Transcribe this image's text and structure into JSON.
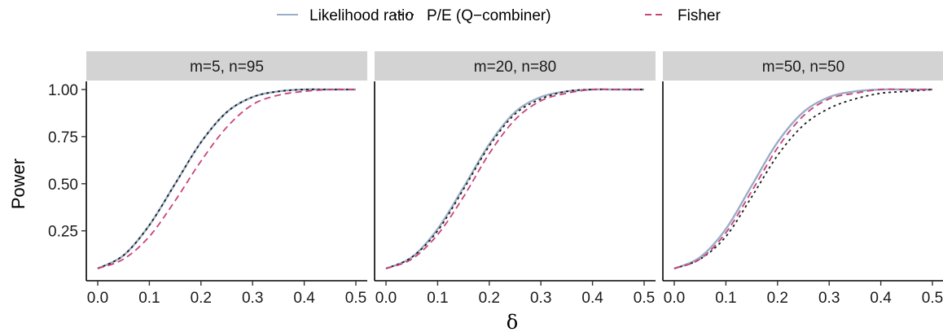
{
  "chart_data": {
    "type": "line",
    "xlabel": "δ",
    "ylabel": "Power",
    "xlim": [
      0,
      0.5
    ],
    "ylim": [
      0.05,
      1.0
    ],
    "x_ticks": [
      "0.0",
      "0.1",
      "0.2",
      "0.3",
      "0.4",
      "0.5"
    ],
    "y_ticks": [
      "0.25",
      "0.50",
      "0.75",
      "1.00"
    ],
    "y_tick_values": [
      0.25,
      0.5,
      0.75,
      1.0
    ],
    "grid": false,
    "legend_position": "top",
    "legend": [
      {
        "label": "Likelihood ratio",
        "color": "#9aaec6",
        "dash": "solid"
      },
      {
        "label": "P/E (Q−combiner)",
        "color": "#1a1a1a",
        "dash": "dotted"
      },
      {
        "label": "Fisher",
        "color": "#c8437a",
        "dash": "dashed"
      }
    ],
    "x": [
      0.0,
      0.05,
      0.1,
      0.15,
      0.2,
      0.25,
      0.3,
      0.35,
      0.4,
      0.45,
      0.5
    ],
    "panels": [
      {
        "title": "m=5, n=95",
        "series": [
          {
            "name": "Likelihood ratio",
            "values": [
              0.05,
              0.12,
              0.28,
              0.5,
              0.72,
              0.88,
              0.96,
              0.99,
              1.0,
              1.0,
              1.0
            ]
          },
          {
            "name": "P/E (Q−combiner)",
            "values": [
              0.05,
              0.12,
              0.28,
              0.5,
              0.72,
              0.88,
              0.96,
              0.99,
              1.0,
              1.0,
              1.0
            ]
          },
          {
            "name": "Fisher",
            "values": [
              0.05,
              0.1,
              0.22,
              0.41,
              0.62,
              0.8,
              0.92,
              0.97,
              0.99,
              1.0,
              1.0
            ]
          }
        ]
      },
      {
        "title": "m=20, n=80",
        "series": [
          {
            "name": "Likelihood ratio",
            "values": [
              0.05,
              0.11,
              0.26,
              0.48,
              0.71,
              0.88,
              0.96,
              0.99,
              1.0,
              1.0,
              1.0
            ]
          },
          {
            "name": "P/E (Q−combiner)",
            "values": [
              0.05,
              0.11,
              0.25,
              0.47,
              0.7,
              0.87,
              0.95,
              0.99,
              1.0,
              1.0,
              1.0
            ]
          },
          {
            "name": "Fisher",
            "values": [
              0.05,
              0.1,
              0.23,
              0.43,
              0.66,
              0.84,
              0.94,
              0.98,
              1.0,
              1.0,
              1.0
            ]
          }
        ]
      },
      {
        "title": "m=50, n=50",
        "series": [
          {
            "name": "Likelihood ratio",
            "values": [
              0.05,
              0.11,
              0.26,
              0.49,
              0.72,
              0.88,
              0.96,
              0.99,
              1.0,
              1.0,
              1.0
            ]
          },
          {
            "name": "P/E (Q−combiner)",
            "values": [
              0.05,
              0.1,
              0.22,
              0.43,
              0.65,
              0.81,
              0.9,
              0.95,
              0.98,
              0.99,
              1.0
            ]
          },
          {
            "name": "Fisher",
            "values": [
              0.05,
              0.1,
              0.24,
              0.46,
              0.69,
              0.86,
              0.95,
              0.98,
              1.0,
              1.0,
              1.0
            ]
          }
        ]
      }
    ]
  }
}
